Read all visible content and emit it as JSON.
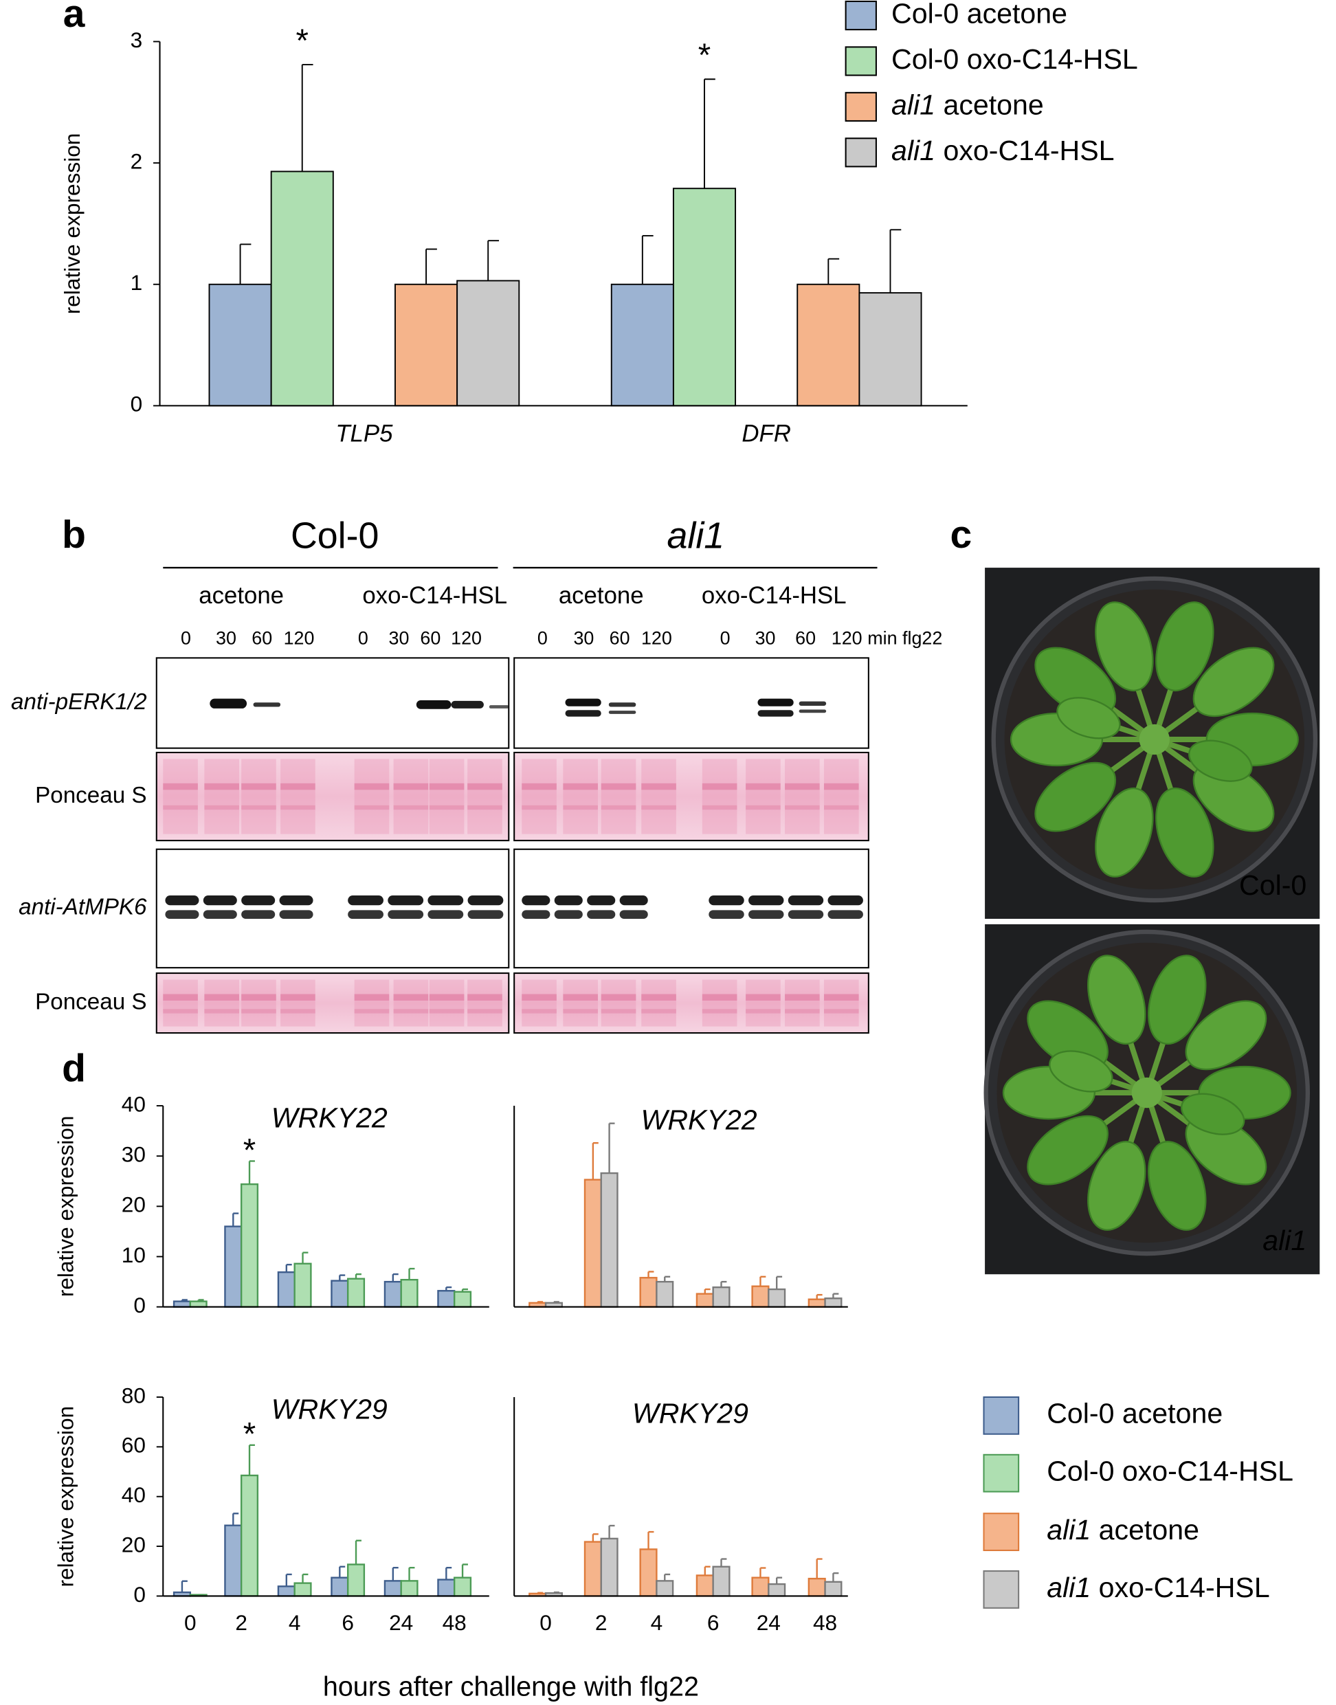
{
  "panel_labels": [
    "a",
    "b",
    "c",
    "d"
  ],
  "chart_data": [
    {
      "type": "bar",
      "ylabel": "relative expression",
      "categories": [
        "TLP5",
        "DFR"
      ],
      "ylim": [
        0,
        3
      ],
      "yticks": [
        0,
        1,
        2,
        3
      ],
      "series": [
        {
          "name": "Col-0 acetone",
          "color": "#9cb3d2",
          "edgecolor": "#000000",
          "values": [
            1,
            1
          ],
          "errors": [
            0.33,
            0.4
          ]
        },
        {
          "name": "Col-0 oxo-C14-HSL",
          "color": "#aedfb1",
          "edgecolor": "#000000",
          "values": [
            1.93,
            1.79
          ],
          "errors": [
            0.88,
            0.9
          ]
        },
        {
          "name": "ali1 acetone",
          "color": "#f5b48b",
          "edgecolor": "#000000",
          "values": [
            1,
            1
          ],
          "errors": [
            0.29,
            0.21
          ]
        },
        {
          "name": "ali1 oxo-C14-HSL",
          "color": "#c9c9c9",
          "edgecolor": "#000000",
          "values": [
            1.03,
            0.93
          ],
          "errors": [
            0.33,
            0.52
          ]
        }
      ],
      "annotations": [
        {
          "text": "*",
          "series": 1,
          "index": 0
        },
        {
          "text": "*",
          "series": 1,
          "index": 1
        }
      ]
    },
    {
      "type": "bar",
      "title": "WRKY22",
      "ylabel": "relative expression",
      "categories": [
        null,
        null,
        null,
        null,
        null,
        null
      ],
      "ylim": [
        0,
        40
      ],
      "yticks": [
        0,
        10,
        20,
        30,
        40
      ],
      "series": [
        {
          "color": "#9cb3d2",
          "edgecolor": "#3e5d8c",
          "values": [
            1.1,
            16,
            6.9,
            5.2,
            5,
            3.2
          ],
          "errors": [
            0.3,
            2.6,
            1.5,
            1.1,
            1.5,
            0.7
          ]
        },
        {
          "color": "#aedfb1",
          "edgecolor": "#4c9b55",
          "values": [
            1.1,
            24.4,
            8.6,
            5.6,
            5.4,
            3
          ],
          "errors": [
            0.3,
            4.6,
            2.2,
            0.9,
            2.2,
            0.5
          ]
        }
      ],
      "annotations": [
        {
          "text": "*",
          "series": 1,
          "index": 1
        }
      ]
    },
    {
      "type": "bar",
      "title": "WRKY22",
      "categories": [
        null,
        null,
        null,
        null,
        null,
        null
      ],
      "ylim": [
        0,
        40
      ],
      "series": [
        {
          "color": "#f5b48b",
          "edgecolor": "#de7a3a",
          "values": [
            0.8,
            25.3,
            5.8,
            2.6,
            4.1,
            1.5
          ],
          "errors": [
            0.2,
            7.3,
            1.2,
            0.9,
            1.9,
            0.9
          ]
        },
        {
          "color": "#c9c9c9",
          "edgecolor": "#7a7a7a",
          "values": [
            0.8,
            26.6,
            5,
            3.9,
            3.5,
            1.7
          ],
          "errors": [
            0.2,
            9.9,
            1,
            1.1,
            2.5,
            0.9
          ]
        }
      ]
    },
    {
      "type": "bar",
      "title": "WRKY29",
      "ylabel": "relative expression",
      "xlabel": "hours after challenge with flg22",
      "categories": [
        "0",
        "2",
        "4",
        "6",
        "24",
        "48"
      ],
      "ylim": [
        0,
        80
      ],
      "yticks": [
        0,
        20,
        40,
        60,
        80
      ],
      "series": [
        {
          "name": "Col-0 acetone",
          "color": "#9cb3d2",
          "edgecolor": "#3e5d8c",
          "values": [
            1.5,
            28.4,
            3.9,
            7.4,
            6.1,
            6.6
          ],
          "errors": [
            4.5,
            4.8,
            4.8,
            4.4,
            5.3,
            4.8
          ]
        },
        {
          "name": "Col-0 oxo-C14-HSL",
          "color": "#aedfb1",
          "edgecolor": "#4c9b55",
          "values": [
            0.5,
            48.5,
            5.2,
            12.7,
            6.1,
            7.4
          ],
          "errors": [
            0,
            12.2,
            3.5,
            9.6,
            5.3,
            5.3
          ]
        }
      ],
      "annotations": [
        {
          "text": "*",
          "series": 1,
          "index": 1
        }
      ]
    },
    {
      "type": "bar",
      "title": "WRKY29",
      "categories": [
        "0",
        "2",
        "4",
        "6",
        "24",
        "48"
      ],
      "ylim": [
        0,
        80
      ],
      "series": [
        {
          "name": "ali1 acetone",
          "color": "#f5b48b",
          "edgecolor": "#de7a3a",
          "values": [
            1,
            21.8,
            18.8,
            8.3,
            7.4,
            7
          ],
          "errors": [
            0.3,
            3.1,
            7,
            3.5,
            3.9,
            7.9
          ]
        },
        {
          "name": "ali1 oxo-C14-HSL",
          "color": "#c9c9c9",
          "edgecolor": "#7a7a7a",
          "values": [
            1.2,
            23.1,
            6.1,
            11.8,
            4.8,
            5.7
          ],
          "errors": [
            0.3,
            5.2,
            2.6,
            3.1,
            2.6,
            3.5
          ]
        }
      ]
    }
  ],
  "panel_b": {
    "strains": [
      "Col-0",
      "ali1"
    ],
    "treatments": [
      "acetone",
      "oxo-C14-HSL"
    ],
    "lanes": [
      "0",
      "30",
      "60",
      "120"
    ],
    "lane_unit": "min flg22",
    "rows": [
      "anti-pERK1/2",
      "Ponceau S",
      "anti-AtMPK6",
      "Ponceau S"
    ]
  },
  "panel_c": {
    "labels": [
      "Col-0",
      "ali1"
    ]
  }
}
